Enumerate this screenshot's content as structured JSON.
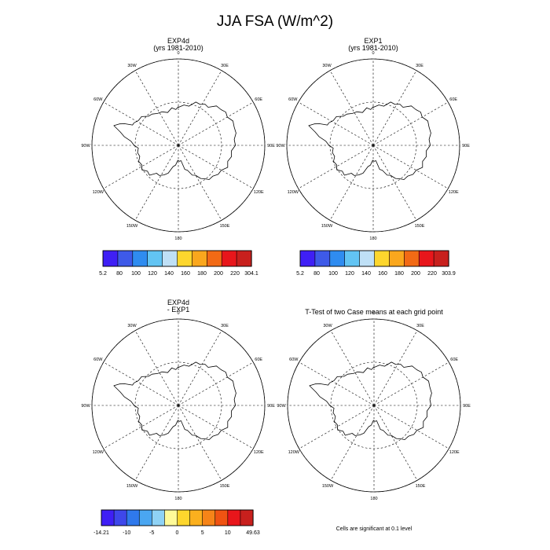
{
  "figure": {
    "main_title": "JJA FSA (W/m^2)",
    "footer_note": "Cells are significant at 0.1 level"
  },
  "panels": [
    {
      "title_lines": [
        "EXP4d",
        "(yrs 1981-2010)"
      ],
      "longitude_labels": [
        "0",
        "30E",
        "60E",
        "90E",
        "120E",
        "150E",
        "180",
        "150W",
        "120W",
        "90W",
        "60W",
        "30W"
      ],
      "colorbar": {
        "colors": [
          "#3f1ff5",
          "#3e5ae8",
          "#2f8cf0",
          "#62c4f3",
          "#bfe0f6",
          "#fdd62d",
          "#faa71d",
          "#f26a15",
          "#e8161b",
          "#c8201d"
        ],
        "labels": [
          "5.2",
          "80",
          "100",
          "120",
          "140",
          "160",
          "180",
          "200",
          "220",
          "304.1"
        ]
      }
    },
    {
      "title_lines": [
        "EXP1",
        "(yrs 1981-2010)"
      ],
      "longitude_labels": [
        "0",
        "30E",
        "60E",
        "90E",
        "120E",
        "150E",
        "180",
        "150W",
        "120W",
        "90W",
        "60W",
        "30W"
      ],
      "colorbar": {
        "colors": [
          "#3f1ff5",
          "#3e5ae8",
          "#2f8cf0",
          "#62c4f3",
          "#bfe0f6",
          "#fdd62d",
          "#faa71d",
          "#f26a15",
          "#e8161b",
          "#c8201d"
        ],
        "labels": [
          "5.2",
          "80",
          "100",
          "120",
          "140",
          "160",
          "180",
          "200",
          "220",
          "303.9"
        ]
      }
    },
    {
      "title_lines": [
        "EXP4d",
        "- EXP1"
      ],
      "longitude_labels": [
        "0",
        "30E",
        "60E",
        "90E",
        "120E",
        "150E",
        "180",
        "150W",
        "120W",
        "90W",
        "60W",
        "30W"
      ],
      "colorbar": {
        "colors": [
          "#3f1ff5",
          "#3e47ea",
          "#2f79ec",
          "#4aa6f1",
          "#8fd2f5",
          "#fffa99",
          "#fdd62d",
          "#fbb01e",
          "#f68418",
          "#f05312",
          "#e8161b",
          "#c8201d"
        ],
        "labels": [
          "-14.21",
          "-10",
          "-5",
          "0",
          "5",
          "10",
          "49.63"
        ]
      }
    },
    {
      "title_lines": [
        "T-Test of two Case means at each grid point"
      ],
      "longitude_labels": [
        "0",
        "30E",
        "60E",
        "90E",
        "120E",
        "150E",
        "180",
        "150W",
        "120W",
        "90W",
        "60W",
        "30W"
      ]
    }
  ]
}
